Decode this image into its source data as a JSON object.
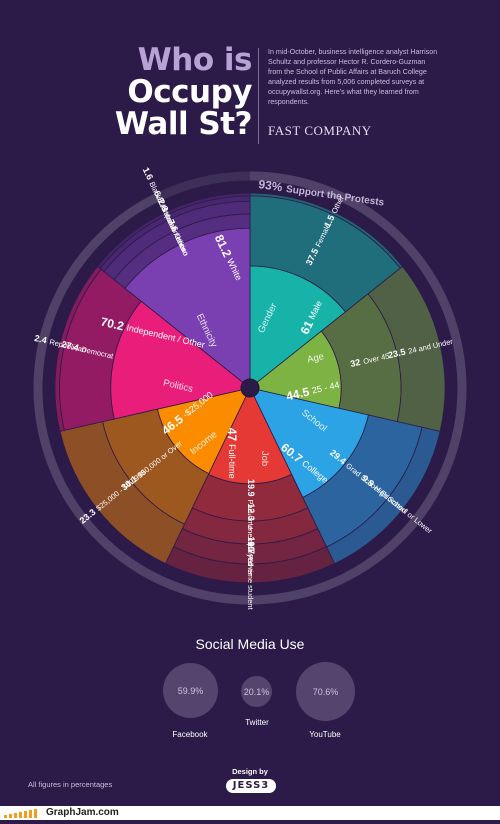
{
  "header": {
    "title_line1": "Who is",
    "title_line2": "Occupy",
    "title_line3": "Wall St?",
    "intro": "In mid-October, business intelligence analyst Harrison Schultz and professor Hector R. Cordero-Guzman from the School of Public Affairs at Baruch College analyzed results from 5,006 completed surveys at occupywallst.org. Here's what they learned from respondents.",
    "publisher": "FAST COMPANY"
  },
  "colors": {
    "background": "#2c1a48",
    "ethnicity": "#7a3fb0",
    "gender": "#17b3a8",
    "age": "#7cb342",
    "school": "#2ba3e5",
    "job": "#e53935",
    "income": "#fb8c00",
    "politics": "#e91e7a",
    "outer_ring": "#4a3a64"
  },
  "chart_data": {
    "type": "radial-bar",
    "title": "Who is Occupy Wall St?",
    "support_ring": {
      "value": 93,
      "label": "Support the Protests"
    },
    "categories": [
      {
        "name": "Gender",
        "color": "#17b3a8",
        "items": [
          {
            "label": "Male",
            "value": 61
          },
          {
            "label": "Female",
            "value": 37.5
          },
          {
            "label": "Other",
            "value": 1.5
          }
        ]
      },
      {
        "name": "Age",
        "color": "#7cb342",
        "items": [
          {
            "label": "25 - 44",
            "value": 44.5
          },
          {
            "label": "Over 45",
            "value": 32.0
          },
          {
            "label": "24 and Under",
            "value": 23.5
          }
        ]
      },
      {
        "name": "School",
        "color": "#2ba3e5",
        "items": [
          {
            "label": "College",
            "value": 60.7
          },
          {
            "label": "Grad School Educated",
            "value": 29.4
          },
          {
            "label": "High School or Lower",
            "value": 9.9
          }
        ]
      },
      {
        "name": "Job",
        "color": "#e53935",
        "items": [
          {
            "label": "Full-time",
            "value": 47
          },
          {
            "label": "Part-time",
            "value": 19.9
          },
          {
            "label": "Unemployed",
            "value": 12.3
          },
          {
            "label": "Other",
            "value": 10.7
          },
          {
            "label": "Full-time student",
            "value": 10
          }
        ]
      },
      {
        "name": "Income",
        "color": "#fb8c00",
        "items": [
          {
            "label": "-$25,000",
            "value": 46.5
          },
          {
            "label": "$50,000 or Over",
            "value": 30.1
          },
          {
            "label": "$25,000 - $49,999",
            "value": 23.3
          }
        ]
      },
      {
        "name": "Politics",
        "color": "#e91e7a",
        "items": [
          {
            "label": "Independent / Other",
            "value": 70.2
          },
          {
            "label": "Democrat",
            "value": 27.4
          },
          {
            "label": "Republican",
            "value": 2.4
          }
        ]
      },
      {
        "name": "Ethnicity",
        "color": "#7a3fb0",
        "items": [
          {
            "label": "White",
            "value": 81.2
          },
          {
            "label": "Other",
            "value": 7.6
          },
          {
            "label": "Hispanic / Latino",
            "value": 6.8
          },
          {
            "label": "Asian",
            "value": 2.8
          },
          {
            "label": "Black / African American",
            "value": 1.6
          }
        ]
      }
    ]
  },
  "social": {
    "title": "Social Media Use",
    "items": [
      {
        "name": "Facebook",
        "value": 59.9,
        "display": "59.9%"
      },
      {
        "name": "Twitter",
        "value": 20.1,
        "display": "20.1%"
      },
      {
        "name": "YouTube",
        "value": 70.6,
        "display": "70.6%"
      }
    ]
  },
  "footer": {
    "note": "All figures in percentages",
    "design_by": "Design by",
    "designer": "JESS3",
    "site": "GraphJam.com"
  }
}
